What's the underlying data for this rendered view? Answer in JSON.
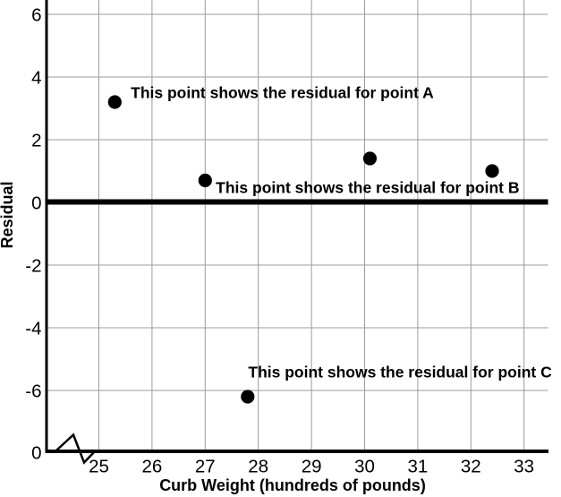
{
  "chart_data": {
    "type": "scatter",
    "title": "",
    "xlabel": "Curb Weight (hundreds of pounds)",
    "ylabel": "Residual",
    "x_ticks": [
      25,
      26,
      27,
      28,
      29,
      30,
      31,
      32,
      33
    ],
    "y_ticks": [
      6,
      4,
      2,
      0,
      -2,
      -4,
      -6
    ],
    "origin_label": "0",
    "xlim": [
      25,
      33
    ],
    "ylim": [
      -6,
      6
    ],
    "grid": true,
    "x_axis_break": true,
    "zero_reference_line": true,
    "points": [
      {
        "x": 25.3,
        "y": 3.2,
        "label": "A"
      },
      {
        "x": 27.0,
        "y": 0.7,
        "label": "B"
      },
      {
        "x": 30.1,
        "y": 1.4,
        "label": null
      },
      {
        "x": 32.4,
        "y": 1.0,
        "label": null
      },
      {
        "x": 27.8,
        "y": -6.2,
        "label": "C"
      }
    ],
    "annotations": [
      {
        "text": "This point shows the residual for point A",
        "anchor_x": 25.6,
        "anchor_y": 3.5
      },
      {
        "text": "This point shows the residual for point B",
        "anchor_x": 27.2,
        "anchor_y": 0.47
      },
      {
        "text": "This point shows the residual for point C",
        "anchor_x": 27.81,
        "anchor_y": -5.42
      }
    ]
  },
  "colors": {
    "ink": "#000000",
    "grid": "#9b9b9b",
    "background": "#ffffff"
  }
}
